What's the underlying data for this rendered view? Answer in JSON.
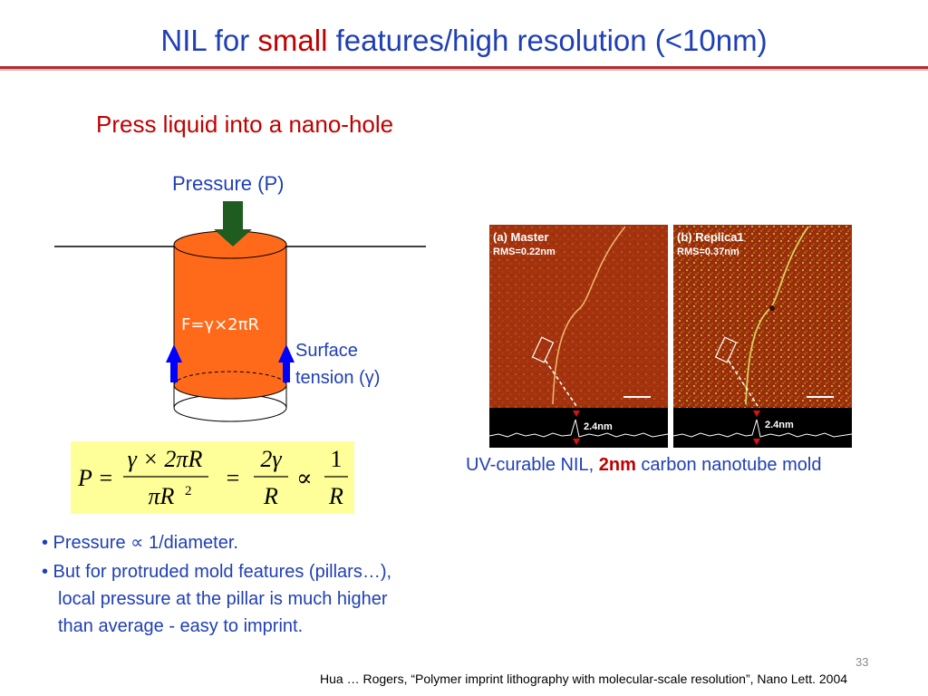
{
  "slide": {
    "title_part1": "NIL for ",
    "title_highlight": "small",
    "title_part2": " features/high resolution (<10nm)",
    "subtitle": "Press liquid into a nano-hole",
    "slide_number": "33",
    "citation": "Hua … Rogers, “Polymer imprint lithography with molecular-scale resolution”, Nano Lett. 2004"
  },
  "diagram": {
    "pressure_label": "Pressure (P)",
    "force_label": "F=γ×2πR",
    "surface_label_line1": "Surface",
    "surface_label_line2": "tension (γ)",
    "colors": {
      "cylinder": "#ff6a1a",
      "pressure_arrow": "#1e5c20",
      "tension_arrows": "#0000ff"
    }
  },
  "formula": {
    "lhs": "P =",
    "frac1_num": "γ × 2πR",
    "frac1_den": "πR",
    "frac1_den_exp": "2",
    "eq": "=",
    "frac2_num": "2γ",
    "frac2_den": "R",
    "prop": "∝",
    "frac3_num": "1",
    "frac3_den": "R",
    "background": "#ffff99"
  },
  "bullets": {
    "b1": "• Pressure ∝ 1/diameter.",
    "b2_line1": "• But for protruded mold features (pillars…),",
    "b2_line2": "local pressure at the pillar is much higher",
    "b2_line3": "than average - easy to imprint."
  },
  "afm": {
    "panel_a_title": "(a) Master",
    "panel_a_rms": "RMS=0.22nm",
    "panel_b_title": "(b) Replica1",
    "panel_b_rms": "RMS=0.37nm",
    "profile_label_a": "2.4nm",
    "profile_label_b": "2.4nm",
    "caption_part1": "UV-curable NIL, ",
    "caption_highlight": "2nm",
    "caption_part2": " carbon nanotube mold"
  }
}
